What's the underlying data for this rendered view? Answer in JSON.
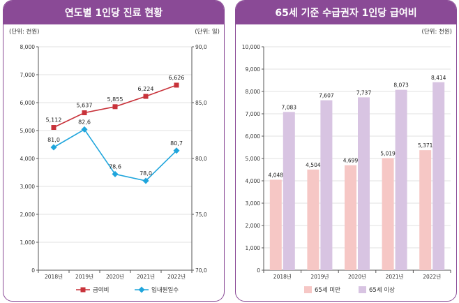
{
  "chart_data": [
    {
      "type": "line",
      "title": "연도별 1인당 진료 현황",
      "unit_left": "(단위: 천원)",
      "unit_right": "(단위: 일)",
      "categories": [
        "2018년",
        "2019년",
        "2020년",
        "2021년",
        "2022년"
      ],
      "ylim_left": [
        0,
        8000
      ],
      "yticks_left": [
        "0",
        "1,000",
        "2,000",
        "3,000",
        "4,000",
        "5,000",
        "6,000",
        "7,000",
        "8,000"
      ],
      "ylim_right": [
        70,
        90
      ],
      "yticks_right": [
        "70,0",
        "75,0",
        "80,0",
        "85,0",
        "90,0"
      ],
      "series": [
        {
          "name": "급여비",
          "axis": "left",
          "color": "#c8323a",
          "marker": "square",
          "values": [
            5112,
            5637,
            5855,
            6224,
            6626
          ],
          "labels": [
            "5,112",
            "5,637",
            "5,855",
            "6,224",
            "6,626"
          ]
        },
        {
          "name": "입내원일수",
          "axis": "right",
          "color": "#1fa5dc",
          "marker": "diamond",
          "values": [
            81.0,
            82.6,
            78.6,
            78.0,
            80.7
          ],
          "labels": [
            "81,0",
            "82,6",
            "78,6",
            "78,0",
            "80,7"
          ]
        }
      ]
    },
    {
      "type": "bar",
      "title": "65세 기준 수급권자 1인당 급여비",
      "unit_left": "(단위: 천원)",
      "categories": [
        "2018년",
        "2019년",
        "2020년",
        "2021년",
        "2022년"
      ],
      "ylim": [
        0,
        10000
      ],
      "yticks": [
        "0",
        "1,000",
        "2,000",
        "3,000",
        "4,000",
        "5,000",
        "6,000",
        "7,000",
        "8,000",
        "9,000",
        "10,000"
      ],
      "series": [
        {
          "name": "65세 미만",
          "color": "#f6c7c5",
          "values": [
            4048,
            4504,
            4699,
            5019,
            5371
          ],
          "labels": [
            "4,048",
            "4,504",
            "4,699",
            "5,019",
            "5,371"
          ]
        },
        {
          "name": "65세 이상",
          "color": "#d8c4e2",
          "values": [
            7083,
            7607,
            7737,
            8073,
            8414
          ],
          "labels": [
            "7,083",
            "7,607",
            "7,737",
            "8,073",
            "8,414"
          ]
        }
      ]
    }
  ]
}
